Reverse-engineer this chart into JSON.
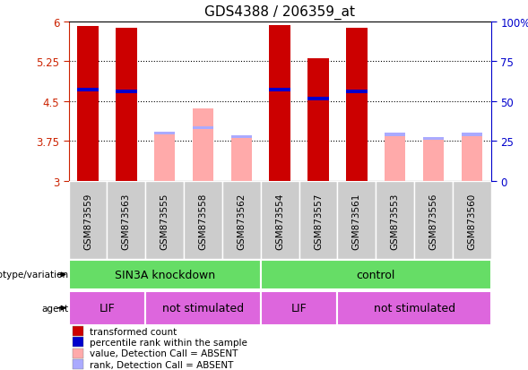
{
  "title": "GDS4388 / 206359_at",
  "samples": [
    "GSM873559",
    "GSM873563",
    "GSM873555",
    "GSM873558",
    "GSM873562",
    "GSM873554",
    "GSM873557",
    "GSM873561",
    "GSM873553",
    "GSM873556",
    "GSM873560"
  ],
  "red_values": [
    5.92,
    5.88,
    null,
    null,
    null,
    5.93,
    5.3,
    5.88,
    null,
    null,
    null
  ],
  "blue_values": [
    4.72,
    4.68,
    null,
    null,
    null,
    4.72,
    4.55,
    4.68,
    null,
    null,
    null
  ],
  "pink_values": [
    null,
    null,
    3.87,
    4.37,
    3.8,
    null,
    null,
    null,
    3.85,
    3.77,
    3.85
  ],
  "lightblue_values": [
    null,
    null,
    3.9,
    4.0,
    3.83,
    null,
    null,
    null,
    3.87,
    3.8,
    3.87
  ],
  "ymin": 3.0,
  "ymax": 6.0,
  "yticks": [
    3.0,
    3.75,
    4.5,
    5.25,
    6.0
  ],
  "ytick_labels": [
    "3",
    "3.75",
    "4.5",
    "5.25",
    "6"
  ],
  "right_yticks": [
    0,
    25,
    50,
    75,
    100
  ],
  "right_ytick_labels": [
    "0",
    "25",
    "50",
    "75",
    "100%"
  ],
  "left_axis_color": "#cc2200",
  "right_axis_color": "#0000cc",
  "bar_width": 0.55,
  "red_color": "#cc0000",
  "blue_color": "#0000cc",
  "pink_color": "#ffaaaa",
  "lightblue_color": "#aaaaff",
  "green_color": "#66dd66",
  "magenta_color": "#dd66dd",
  "gray_color": "#cccccc",
  "genotype_blocks": [
    {
      "label": "SIN3A knockdown",
      "start": 0,
      "end": 4
    },
    {
      "label": "control",
      "start": 5,
      "end": 10
    }
  ],
  "agent_blocks": [
    {
      "label": "LIF",
      "start": 0,
      "end": 1
    },
    {
      "label": "not stimulated",
      "start": 2,
      "end": 4
    },
    {
      "label": "LIF",
      "start": 5,
      "end": 6
    },
    {
      "label": "not stimulated",
      "start": 7,
      "end": 10
    }
  ],
  "legend_items": [
    {
      "label": "transformed count",
      "color": "#cc0000"
    },
    {
      "label": "percentile rank within the sample",
      "color": "#0000cc"
    },
    {
      "label": "value, Detection Call = ABSENT",
      "color": "#ffaaaa"
    },
    {
      "label": "rank, Detection Call = ABSENT",
      "color": "#aaaaff"
    }
  ]
}
